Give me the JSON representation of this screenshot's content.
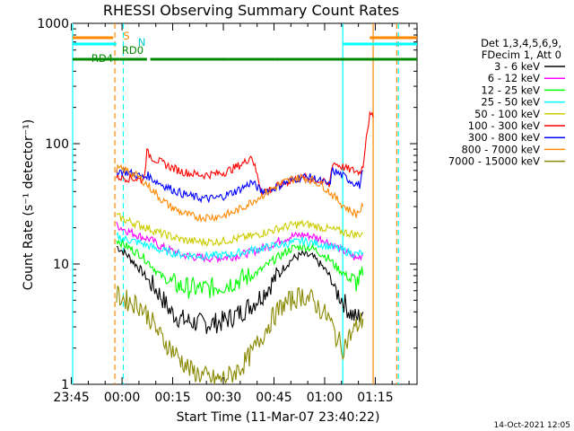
{
  "chart_data": {
    "type": "line",
    "title": "RHESSI Observing Summary Count Rates",
    "xlabel": "Start Time (11-Mar-07 23:40:22)",
    "ylabel": "Count Rate (s⁻¹ detector⁻¹)",
    "yscale": "log",
    "ylim": [
      1,
      1000
    ],
    "xlim_minutes": [
      -20,
      82
    ],
    "x_ticks": [
      "23:45",
      "00:00",
      "00:15",
      "00:30",
      "00:45",
      "01:00",
      "01:15"
    ],
    "y_ticks": [
      "1",
      "10",
      "100",
      "1000"
    ],
    "legend_header": [
      "Det 1,3,4,5,6,9,",
      "FDecim 1, Att 0"
    ],
    "legend_position": "right",
    "series": [
      {
        "name": "3 - 6 keV",
        "color": "#000000",
        "x": [
          -7,
          -4,
          0,
          3,
          6,
          9,
          12,
          15,
          18,
          21,
          24,
          27,
          30,
          33,
          36,
          39,
          42,
          45,
          48,
          51,
          54,
          56,
          58,
          60,
          62,
          64,
          66
        ],
        "y": [
          14,
          12,
          9,
          7,
          5.5,
          4,
          3.5,
          3.3,
          3.2,
          3.2,
          3.3,
          3.6,
          4,
          4.6,
          5.5,
          7,
          9,
          11,
          12,
          11.5,
          9.5,
          8,
          6,
          5,
          4,
          3.5,
          4
        ]
      },
      {
        "name": "6 - 12 keV",
        "color": "#ff00ff",
        "x": [
          -7,
          -4,
          0,
          3,
          6,
          9,
          12,
          15,
          18,
          21,
          24,
          27,
          30,
          33,
          36,
          39,
          42,
          45,
          48,
          51,
          54,
          56,
          58,
          60,
          62,
          64,
          66
        ],
        "y": [
          21,
          19,
          17,
          16,
          14,
          13,
          12,
          11.5,
          11.3,
          11.2,
          11.3,
          11.5,
          12,
          12.5,
          13.5,
          14.5,
          16,
          17,
          17.5,
          17,
          16,
          15,
          14,
          13,
          12,
          11,
          12
        ]
      },
      {
        "name": "12 - 25 keV",
        "color": "#00ff00",
        "x": [
          -7,
          -4,
          0,
          3,
          6,
          9,
          12,
          15,
          18,
          21,
          24,
          27,
          30,
          33,
          36,
          39,
          42,
          45,
          48,
          51,
          54,
          56,
          58,
          60,
          62,
          64,
          66
        ],
        "y": [
          16,
          14,
          12,
          10,
          8,
          7,
          6.5,
          6.3,
          6.2,
          6.3,
          6.6,
          7,
          7.5,
          8,
          9,
          10.5,
          12,
          13.5,
          14,
          13.5,
          12,
          11,
          9.5,
          8.5,
          7.5,
          7,
          8
        ]
      },
      {
        "name": "25 - 50 keV",
        "color": "#00ffff",
        "x": [
          -7,
          -4,
          0,
          3,
          6,
          9,
          12,
          15,
          18,
          21,
          24,
          27,
          30,
          33,
          36,
          39,
          42,
          45,
          48,
          51,
          54,
          56,
          58,
          60,
          62,
          64,
          66
        ],
        "y": [
          17,
          16,
          15,
          14,
          13,
          12.5,
          12,
          11.8,
          11.7,
          11.7,
          11.8,
          12,
          12.5,
          13,
          13.5,
          14,
          14.5,
          15,
          15.5,
          15,
          14.5,
          14,
          13.5,
          13,
          12.5,
          12,
          12.5
        ]
      },
      {
        "name": "50 - 100 keV",
        "color": "#cccc00",
        "x": [
          -7,
          -4,
          0,
          3,
          6,
          9,
          12,
          15,
          18,
          21,
          24,
          27,
          30,
          33,
          36,
          39,
          42,
          45,
          48,
          51,
          54,
          56,
          58,
          60,
          62,
          64,
          66
        ],
        "y": [
          25,
          23,
          21,
          19.5,
          18,
          17,
          16,
          15.5,
          15.3,
          15.3,
          15.5,
          16,
          16.5,
          17,
          18,
          19,
          20,
          21,
          21.5,
          21,
          20,
          19.5,
          19,
          18.5,
          18,
          17.5,
          18
        ]
      },
      {
        "name": "100 - 300 keV",
        "color": "#ff0000",
        "x": [
          -7,
          -4,
          -1,
          1,
          2,
          4,
          7,
          10,
          13,
          16,
          19,
          22,
          25,
          28,
          31,
          33,
          36,
          39,
          42,
          45,
          48,
          51,
          54,
          56,
          57,
          59,
          61,
          63,
          65,
          66,
          67,
          68,
          69
        ],
        "y": [
          53,
          52,
          51,
          50,
          85,
          75,
          68,
          62,
          58,
          56,
          55,
          56,
          58,
          63,
          70,
          80,
          40,
          42,
          46,
          50,
          52,
          51,
          48,
          45,
          70,
          66,
          62,
          60,
          58,
          65,
          120,
          170,
          165
        ]
      },
      {
        "name": "300 - 800 keV",
        "color": "#0000ff",
        "x": [
          -7,
          -4,
          -1,
          1,
          2,
          4,
          7,
          10,
          13,
          16,
          19,
          22,
          25,
          28,
          31,
          33,
          36,
          39,
          42,
          45,
          48,
          51,
          54,
          56,
          57,
          59,
          61,
          63,
          65,
          66
        ],
        "y": [
          60,
          58,
          55,
          52,
          55,
          50,
          45,
          41,
          38,
          36,
          35,
          35,
          37,
          40,
          44,
          48,
          40,
          42,
          46,
          50,
          53,
          52,
          48,
          45,
          60,
          56,
          52,
          48,
          45,
          60
        ]
      },
      {
        "name": "800 - 7000 keV",
        "color": "#ff8800",
        "x": [
          -7,
          -4,
          0,
          3,
          6,
          9,
          12,
          15,
          18,
          21,
          24,
          27,
          30,
          33,
          36,
          39,
          42,
          45,
          48,
          51,
          54,
          56,
          58,
          60,
          62,
          64,
          66
        ],
        "y": [
          62,
          60,
          52,
          43,
          35,
          30,
          27,
          25,
          24.5,
          24.5,
          25,
          26.5,
          29,
          33,
          37,
          42,
          47,
          51,
          52,
          50,
          45,
          40,
          35,
          31,
          28,
          26,
          30
        ]
      },
      {
        "name": "7000 - 15000 keV",
        "color": "#888800",
        "x": [
          -7,
          -4,
          0,
          3,
          6,
          9,
          12,
          15,
          18,
          21,
          24,
          27,
          30,
          33,
          36,
          39,
          42,
          45,
          48,
          51,
          54,
          56,
          58,
          60,
          62,
          64,
          66
        ],
        "y": [
          5.5,
          5,
          4.5,
          3.5,
          2.5,
          2,
          1.6,
          1.3,
          1.2,
          1.1,
          1.1,
          1.2,
          1.4,
          1.8,
          2.5,
          3.5,
          4.5,
          5,
          5.5,
          5,
          4,
          3.5,
          2.5,
          2,
          2.5,
          3,
          3.5
        ]
      }
    ],
    "state_bars": [
      {
        "label": "S",
        "color": "#ff8800",
        "segments": [
          [
            -20,
            -8
          ],
          [
            68,
            82
          ]
        ]
      },
      {
        "label": "N",
        "color": "#00ffff",
        "segments": [
          [
            -20,
            -7
          ],
          [
            60,
            82
          ]
        ]
      },
      {
        "label": "RD0",
        "color": "#008800",
        "segments": []
      },
      {
        "label": "RD4",
        "color": "#008800",
        "segments": [
          [
            -20,
            -6
          ],
          [
            -6,
            2
          ],
          [
            3,
            26
          ],
          [
            26,
            40
          ],
          [
            40,
            82
          ]
        ]
      }
    ],
    "vertical_lines": [
      {
        "x": -20,
        "color": "#00ffff",
        "style": "solid"
      },
      {
        "x": -7.5,
        "color": "#ff8800",
        "style": "dashed"
      },
      {
        "x": -5,
        "color": "#00ffff",
        "style": "dashed"
      },
      {
        "x": 60,
        "color": "#00ffff",
        "style": "solid"
      },
      {
        "x": 69,
        "color": "#ff8800",
        "style": "solid"
      },
      {
        "x": 76,
        "color": "#ff8800",
        "style": "dashed"
      },
      {
        "x": 76.5,
        "color": "#00ffff",
        "style": "dashed"
      }
    ]
  },
  "footer": {
    "date": "14-Oct-2021 12:05"
  }
}
